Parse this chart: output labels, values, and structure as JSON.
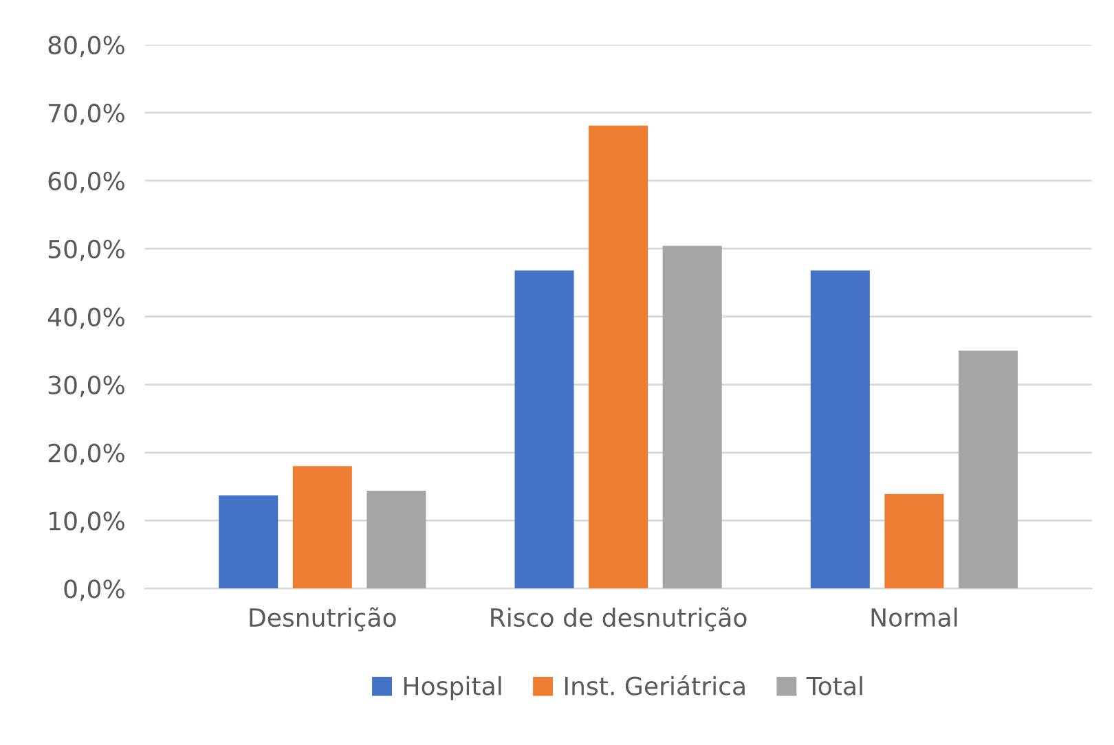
{
  "chart_data": {
    "type": "bar",
    "categories": [
      "Desnutrição",
      "Risco de desnutrição",
      "Normal"
    ],
    "series": [
      {
        "name": "Hospital",
        "color": "#4472c4",
        "values": [
          13.7,
          46.8,
          46.8
        ]
      },
      {
        "name": "Inst. Geriátrica",
        "color": "#ed7d31",
        "values": [
          18.0,
          68.1,
          13.9
        ]
      },
      {
        "name": "Total",
        "color": "#a5a5a5",
        "values": [
          14.4,
          50.4,
          35.0
        ]
      }
    ],
    "ylim": [
      0,
      80
    ],
    "yticks": [
      {
        "value": 0,
        "label": "0,0%"
      },
      {
        "value": 10,
        "label": "10,0%"
      },
      {
        "value": 20,
        "label": "20,0%"
      },
      {
        "value": 30,
        "label": "30,0%"
      },
      {
        "value": 40,
        "label": "40,0%"
      },
      {
        "value": 50,
        "label": "50,0%"
      },
      {
        "value": 60,
        "label": "60,0%"
      },
      {
        "value": 70,
        "label": "70,0%"
      },
      {
        "value": 80,
        "label": "80,0%"
      }
    ],
    "grid": "y",
    "legend": "bottom"
  }
}
